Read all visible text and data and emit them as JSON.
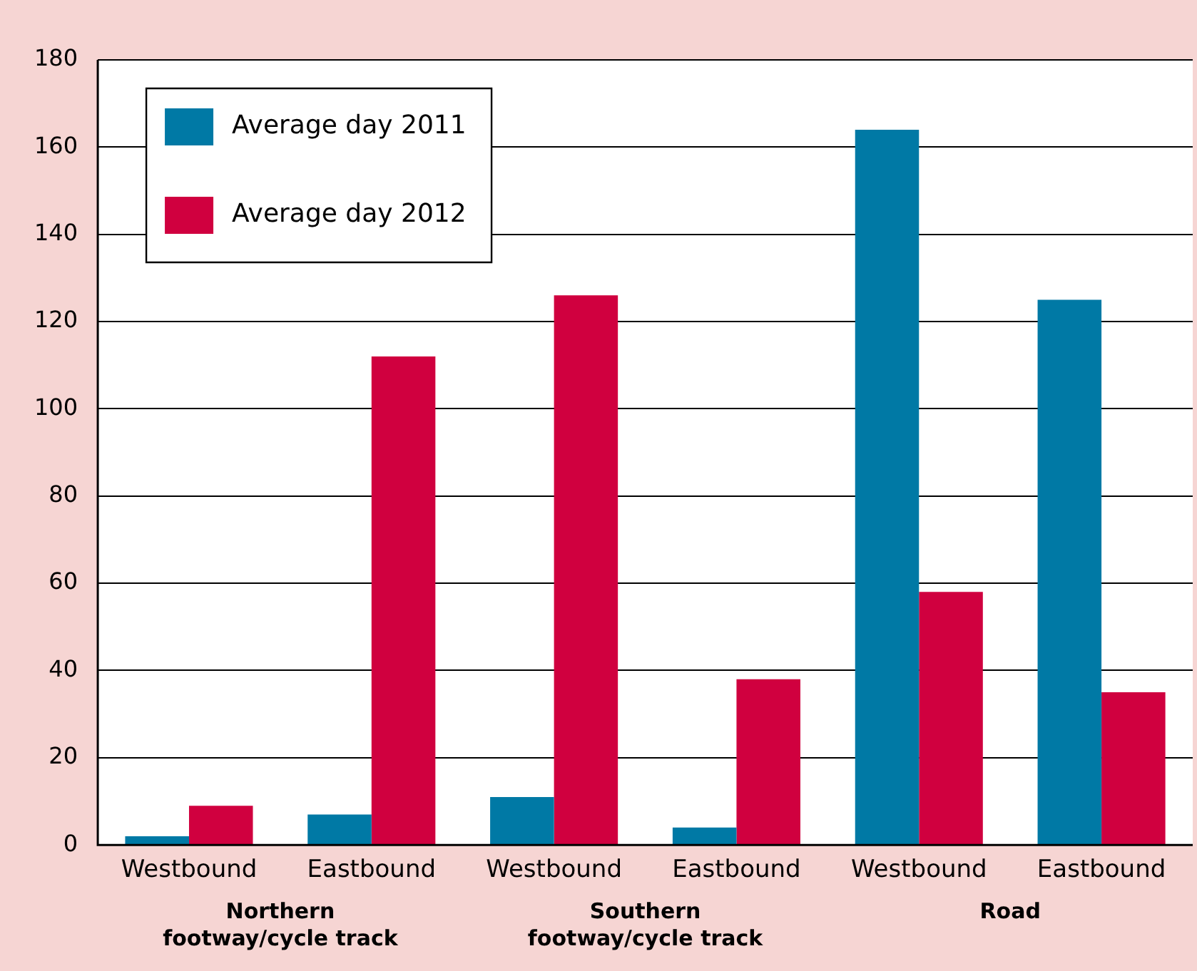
{
  "chart_data": {
    "type": "bar",
    "categories": [
      "Westbound",
      "Eastbound",
      "Westbound",
      "Eastbound",
      "Westbound",
      "Eastbound"
    ],
    "series": [
      {
        "name": "Average day 2011",
        "color": "#0079a5",
        "values": [
          2,
          7,
          11,
          4,
          164,
          125
        ]
      },
      {
        "name": "Average day 2012",
        "color": "#d0003f",
        "values": [
          9,
          112,
          126,
          38,
          58,
          35
        ]
      }
    ],
    "annotations": [
      "Northern footway/cycle track",
      "Southern footway/cycle track",
      "Road"
    ],
    "ylim": [
      0,
      180
    ],
    "yticks": [
      0,
      20,
      40,
      60,
      80,
      100,
      120,
      140,
      160,
      180
    ],
    "grid": "y",
    "legend": "top left"
  }
}
